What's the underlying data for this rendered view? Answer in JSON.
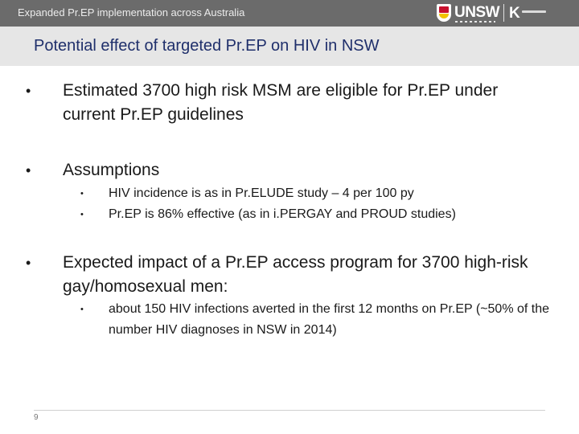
{
  "header": {
    "title": "Expanded Pr.EP implementation across Australia",
    "logo_unsw": "UNSW",
    "logo_kirby": "K"
  },
  "slide": {
    "title": "Potential effect of targeted Pr.EP on HIV in NSW",
    "bullets": [
      {
        "text": "Estimated 3700 high risk MSM are eligible for Pr.EP under current Pr.EP guidelines",
        "sub": []
      },
      {
        "text": "Assumptions",
        "sub": [
          "HIV incidence is as in Pr.ELUDE study – 4 per 100 py",
          "Pr.EP is 86% effective (as in i.PERGAY and PROUD studies)"
        ]
      },
      {
        "text": "Expected impact of a Pr.EP access program for 3700 high-risk gay/homosexual men:",
        "sub": [
          "about 150 HIV infections averted in the first 12 months on Pr.EP (~50% of the number HIV diagnoses in NSW in 2014)"
        ]
      }
    ],
    "bullet_glyph": "•"
  },
  "footer": {
    "page_number": "9"
  },
  "colors": {
    "header_bar": "#6b6b6b",
    "title_bar": "#e6e6e6",
    "title_text": "#1f2f6b"
  }
}
